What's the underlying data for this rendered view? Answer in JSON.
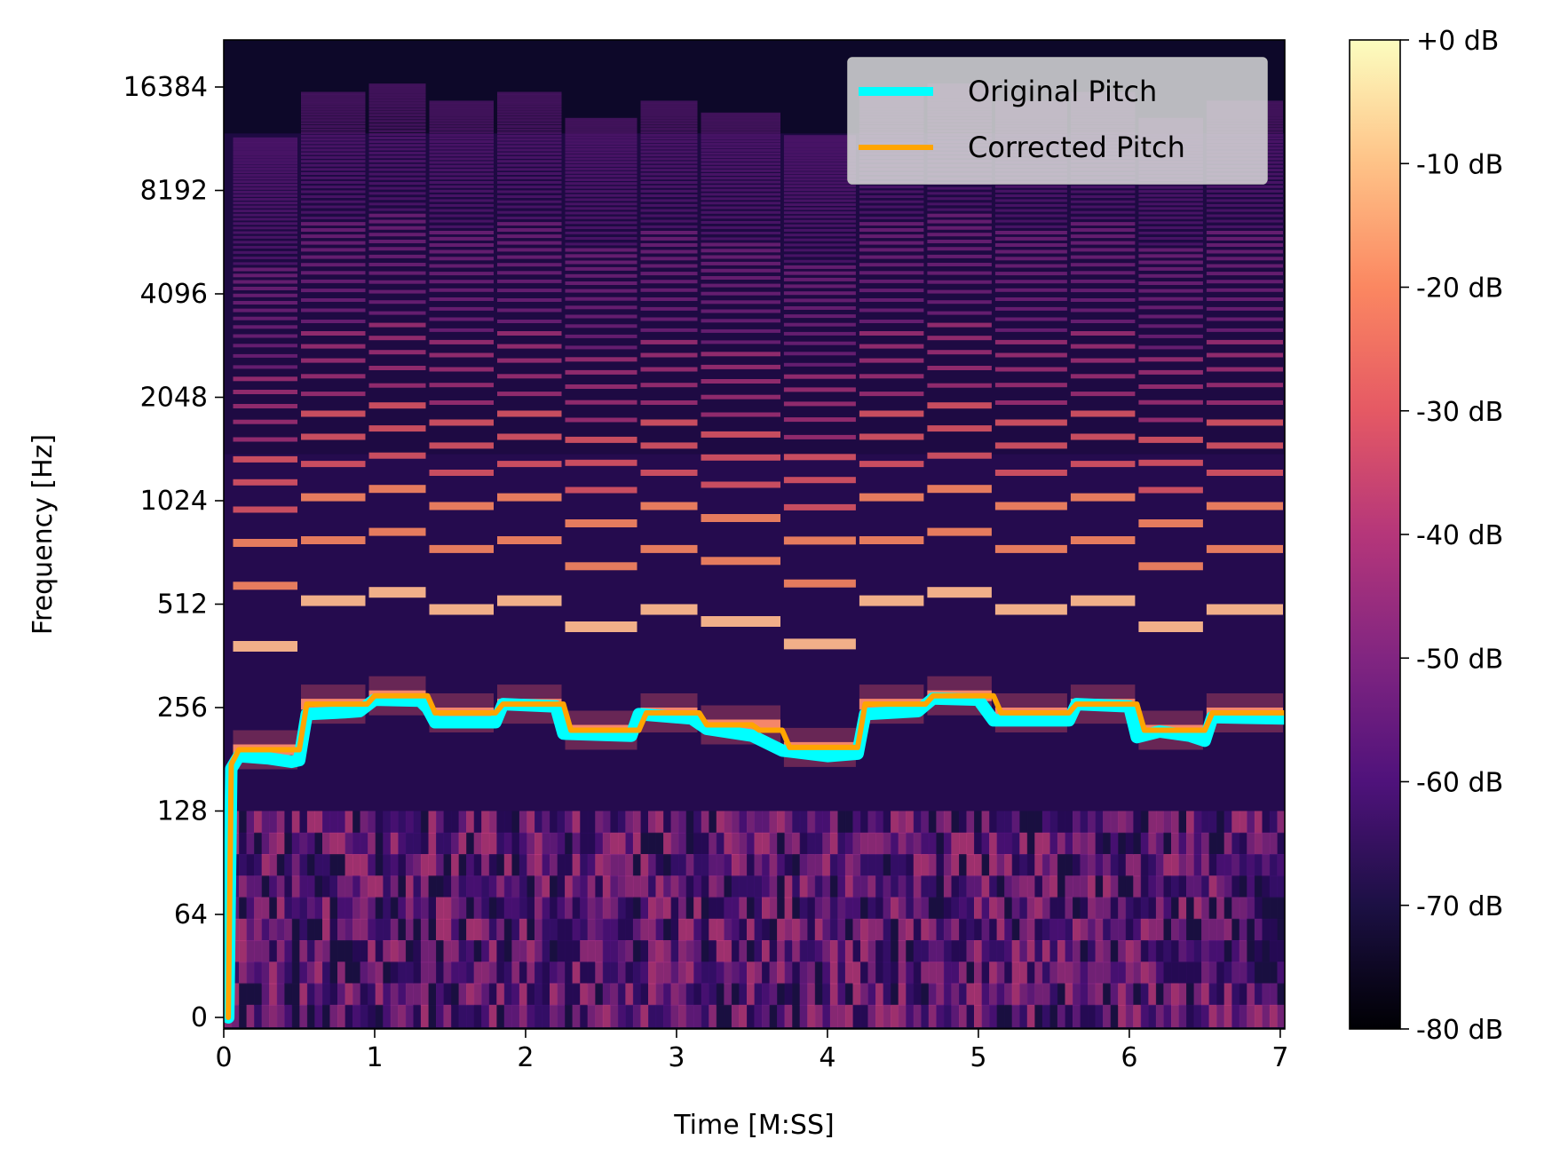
{
  "chart_data": {
    "type": "heatmap",
    "subtype": "spectrogram with pitch overlays",
    "title": "",
    "xlabel": "Time [M:SS]",
    "ylabel": "Frequency [Hz]",
    "x_ticks": [
      "0",
      "1",
      "2",
      "3",
      "4",
      "5",
      "6",
      "7"
    ],
    "x_tick_values": [
      0,
      1,
      2,
      3,
      4,
      5,
      6,
      7
    ],
    "xlim": [
      0,
      7.03
    ],
    "y_scale": "log2 (symlog)",
    "y_ticks": [
      "0",
      "64",
      "128",
      "256",
      "512",
      "1024",
      "2048",
      "4096",
      "8192",
      "16384"
    ],
    "y_tick_values": [
      0,
      64,
      128,
      256,
      512,
      1024,
      2048,
      4096,
      8192,
      16384
    ],
    "ylim": [
      0,
      22050
    ],
    "colormap": "magma",
    "colorbar": {
      "ticks": [
        "+0 dB",
        "-10 dB",
        "-20 dB",
        "-30 dB",
        "-40 dB",
        "-50 dB",
        "-60 dB",
        "-70 dB",
        "-80 dB"
      ],
      "tick_values": [
        0,
        -10,
        -20,
        -30,
        -40,
        -50,
        -60,
        -70,
        -80
      ],
      "range": [
        -80,
        0
      ]
    },
    "legend_position": "top-right",
    "grid": false,
    "series": [
      {
        "name": "Original Pitch",
        "color": "#00ffff",
        "points": [
          [
            0.03,
            0
          ],
          [
            0.05,
            170
          ],
          [
            0.1,
            185
          ],
          [
            0.3,
            182
          ],
          [
            0.45,
            178
          ],
          [
            0.5,
            180
          ],
          [
            0.55,
            245
          ],
          [
            0.8,
            248
          ],
          [
            0.9,
            250
          ],
          [
            1.0,
            270
          ],
          [
            1.3,
            268
          ],
          [
            1.35,
            255
          ],
          [
            1.4,
            232
          ],
          [
            1.8,
            232
          ],
          [
            1.85,
            262
          ],
          [
            2.2,
            258
          ],
          [
            2.25,
            215
          ],
          [
            2.7,
            212
          ],
          [
            2.75,
            245
          ],
          [
            3.1,
            238
          ],
          [
            3.2,
            222
          ],
          [
            3.5,
            212
          ],
          [
            3.7,
            192
          ],
          [
            4.0,
            185
          ],
          [
            4.2,
            188
          ],
          [
            4.25,
            245
          ],
          [
            4.6,
            250
          ],
          [
            4.7,
            272
          ],
          [
            5.0,
            270
          ],
          [
            5.1,
            235
          ],
          [
            5.6,
            235
          ],
          [
            5.65,
            262
          ],
          [
            6.0,
            258
          ],
          [
            6.05,
            210
          ],
          [
            6.2,
            218
          ],
          [
            6.4,
            212
          ],
          [
            6.5,
            205
          ],
          [
            6.55,
            240
          ],
          [
            7.03,
            238
          ]
        ]
      },
      {
        "name": "Corrected Pitch",
        "color": "#ffa500",
        "points": [
          [
            0.03,
            0
          ],
          [
            0.05,
            175
          ],
          [
            0.1,
            193
          ],
          [
            0.5,
            193
          ],
          [
            0.55,
            262
          ],
          [
            0.95,
            262
          ],
          [
            1.0,
            277
          ],
          [
            1.35,
            277
          ],
          [
            1.4,
            247
          ],
          [
            1.8,
            247
          ],
          [
            1.85,
            262
          ],
          [
            2.25,
            262
          ],
          [
            2.3,
            220
          ],
          [
            2.75,
            220
          ],
          [
            2.8,
            247
          ],
          [
            3.15,
            247
          ],
          [
            3.2,
            228
          ],
          [
            3.5,
            228
          ],
          [
            3.55,
            220
          ],
          [
            3.7,
            220
          ],
          [
            3.75,
            196
          ],
          [
            4.2,
            196
          ],
          [
            4.25,
            262
          ],
          [
            4.65,
            262
          ],
          [
            4.7,
            277
          ],
          [
            5.1,
            277
          ],
          [
            5.15,
            247
          ],
          [
            5.6,
            247
          ],
          [
            5.65,
            262
          ],
          [
            6.05,
            262
          ],
          [
            6.1,
            220
          ],
          [
            6.5,
            220
          ],
          [
            6.55,
            247
          ],
          [
            7.03,
            247
          ]
        ]
      }
    ],
    "notes_segments": [
      {
        "t0": 0.05,
        "t1": 0.5,
        "f0": 193
      },
      {
        "t0": 0.5,
        "t1": 0.95,
        "f0": 262
      },
      {
        "t0": 0.95,
        "t1": 1.35,
        "f0": 277
      },
      {
        "t0": 1.35,
        "t1": 1.8,
        "f0": 247
      },
      {
        "t0": 1.8,
        "t1": 2.25,
        "f0": 262
      },
      {
        "t0": 2.25,
        "t1": 2.75,
        "f0": 220
      },
      {
        "t0": 2.75,
        "t1": 3.15,
        "f0": 247
      },
      {
        "t0": 3.15,
        "t1": 3.7,
        "f0": 228
      },
      {
        "t0": 3.7,
        "t1": 4.2,
        "f0": 196
      },
      {
        "t0": 4.2,
        "t1": 4.65,
        "f0": 262
      },
      {
        "t0": 4.65,
        "t1": 5.1,
        "f0": 277
      },
      {
        "t0": 5.1,
        "t1": 5.6,
        "f0": 247
      },
      {
        "t0": 5.6,
        "t1": 6.05,
        "f0": 262
      },
      {
        "t0": 6.05,
        "t1": 6.5,
        "f0": 220
      },
      {
        "t0": 6.5,
        "t1": 7.03,
        "f0": 247
      }
    ]
  }
}
